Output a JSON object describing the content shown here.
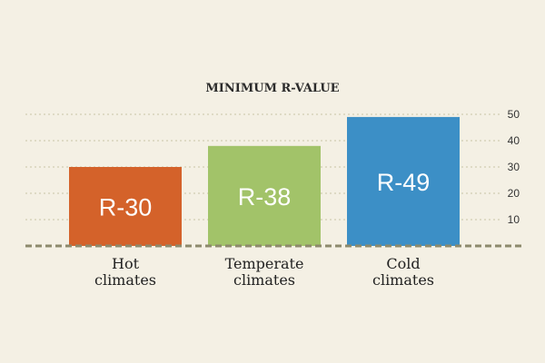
{
  "chart_data": {
    "type": "bar",
    "title": "MINIMUM R-VALUE",
    "categories": [
      [
        "Hot",
        "climates"
      ],
      [
        "Temperate",
        "climates"
      ],
      [
        "Cold",
        "climates"
      ]
    ],
    "values": [
      30,
      38,
      49
    ],
    "data_labels": [
      "R-30",
      "R-38",
      "R-49"
    ],
    "colors": [
      "#d4622a",
      "#a2c369",
      "#3c8fc6"
    ],
    "yticks": [
      10,
      20,
      30,
      40,
      50
    ],
    "ylim": [
      0,
      50
    ],
    "axis_position": "right",
    "grid": true,
    "xlabel": "",
    "ylabel": ""
  }
}
